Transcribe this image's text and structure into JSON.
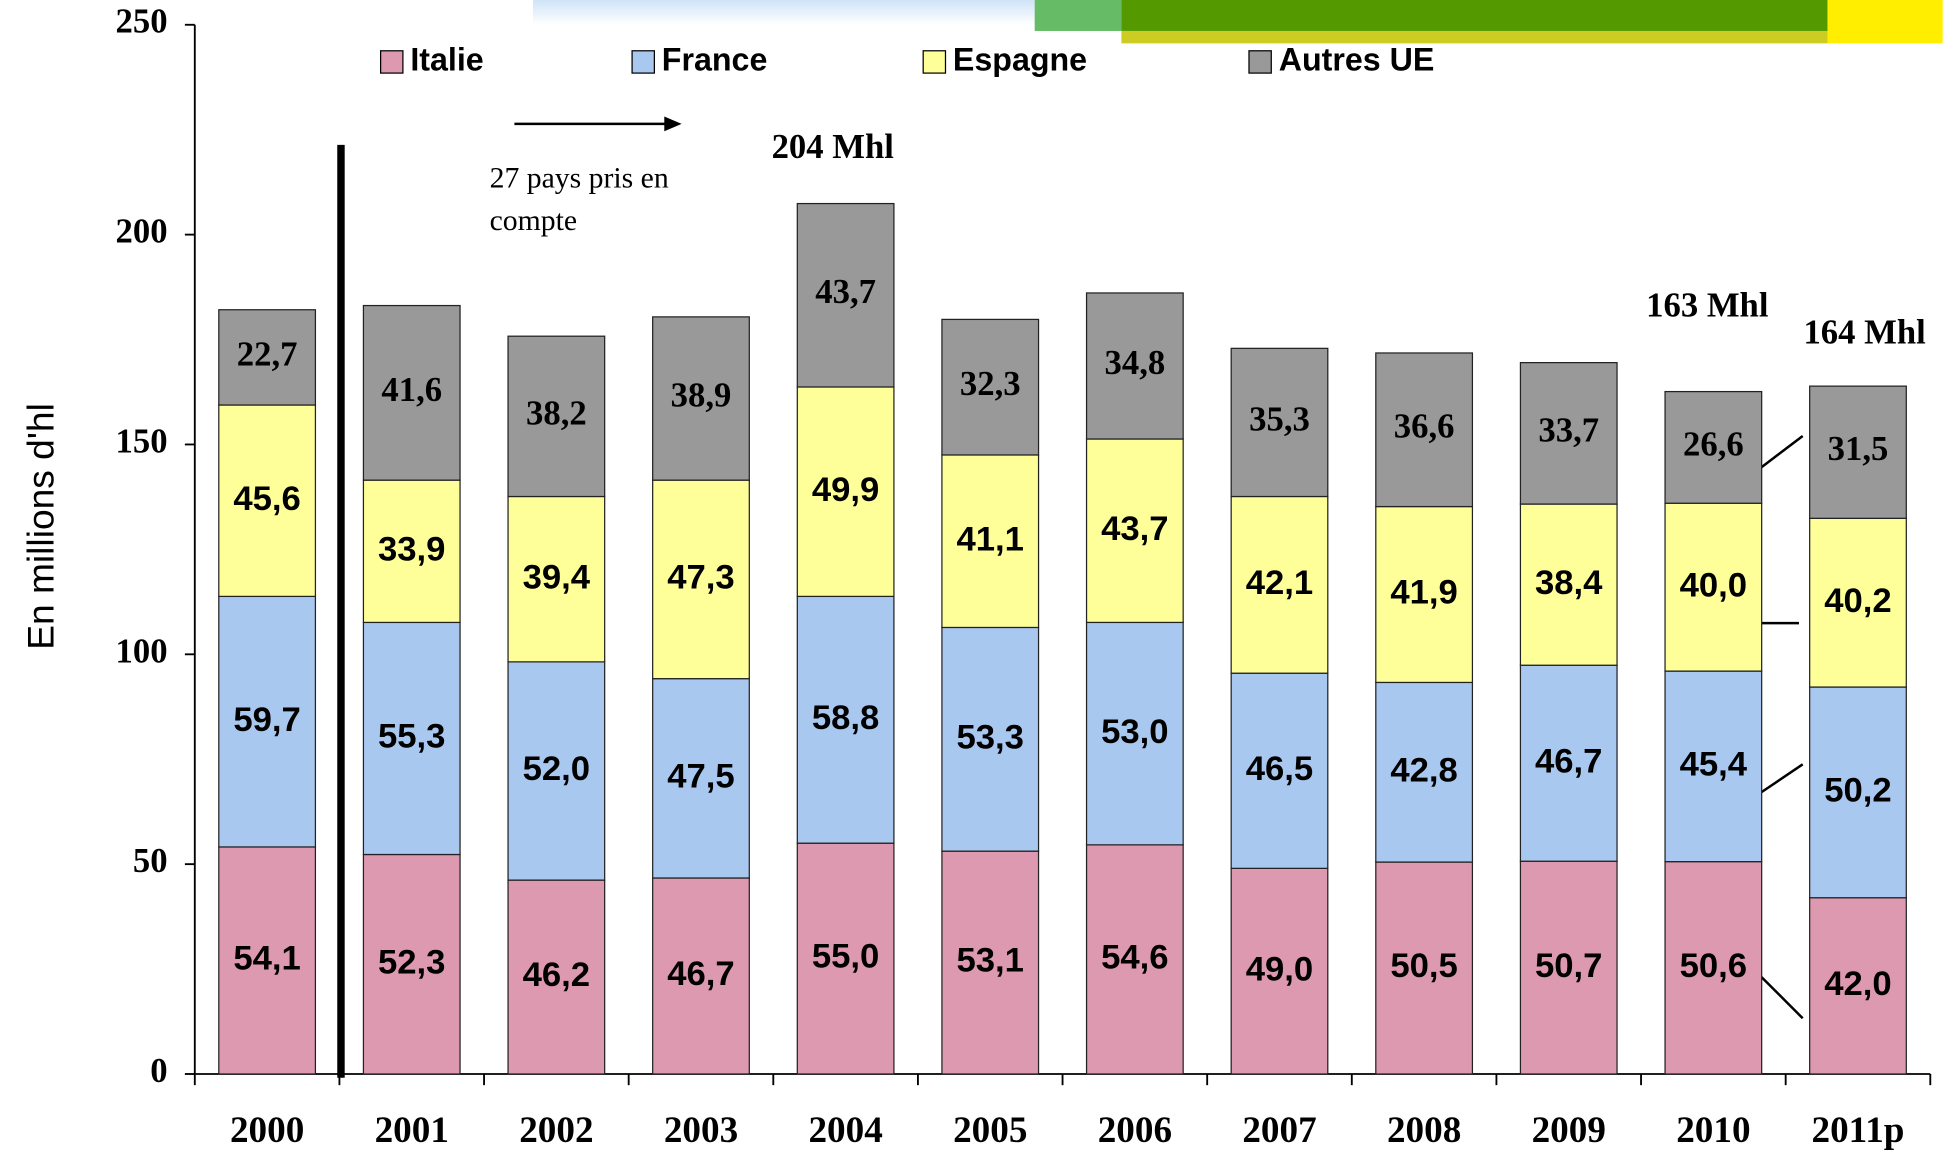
{
  "chart_data": {
    "type": "stacked_bar",
    "y_label": "En millions d'hl",
    "categories": [
      "2000",
      "2001",
      "2002",
      "2003",
      "2004",
      "2005",
      "2006",
      "2007",
      "2008",
      "2009",
      "2010",
      "2011p"
    ],
    "series": [
      {
        "name": "Italie",
        "color": "#dd99b0",
        "values": [
          54.1,
          52.3,
          46.2,
          46.7,
          55.0,
          53.1,
          54.6,
          49.0,
          50.5,
          50.7,
          50.6,
          42.0
        ],
        "value_labels": [
          "54,1",
          "52,3",
          "46,2",
          "46,7",
          "55,0",
          "53,1",
          "54,6",
          "49,0",
          "50,5",
          "50,7",
          "50,6",
          "42,0"
        ]
      },
      {
        "name": "France",
        "color": "#a9c8ef",
        "values": [
          59.7,
          55.3,
          52.0,
          47.5,
          58.8,
          53.3,
          53.0,
          46.5,
          42.8,
          46.7,
          45.4,
          50.2
        ],
        "value_labels": [
          "59,7",
          "55,3",
          "52,0",
          "47,5",
          "58,8",
          "53,3",
          "53,0",
          "46,5",
          "42,8",
          "46,7",
          "45,4",
          "50,2"
        ]
      },
      {
        "name": "Espagne",
        "color": "#ffff99",
        "values": [
          45.6,
          33.9,
          39.4,
          47.3,
          49.9,
          41.1,
          43.7,
          42.1,
          41.9,
          38.4,
          40.0,
          40.2
        ],
        "value_labels": [
          "45,6",
          "33,9",
          "39,4",
          "47,3",
          "49,9",
          "41,1",
          "43,7",
          "42,1",
          "41,9",
          "38,4",
          "40,0",
          "40,2"
        ]
      },
      {
        "name": "Autres UE",
        "color": "#999999",
        "values": [
          22.7,
          41.6,
          38.2,
          38.9,
          43.7,
          32.3,
          34.8,
          35.3,
          36.6,
          33.7,
          26.6,
          31.5
        ],
        "value_labels": [
          "22,7",
          "41,6",
          "38,2",
          "38,9",
          "43,7",
          "32,3",
          "34,8",
          "35,3",
          "36,6",
          "33,7",
          "26,6",
          "31,5"
        ]
      }
    ],
    "ylim": [
      0,
      250
    ],
    "yticks": [
      0,
      50,
      100,
      150,
      200,
      250
    ],
    "annotations": [
      "204 Mhl",
      "163 Mhl",
      "164 Mhl"
    ],
    "note_lines": [
      "27 pays pris en",
      "compte"
    ]
  }
}
